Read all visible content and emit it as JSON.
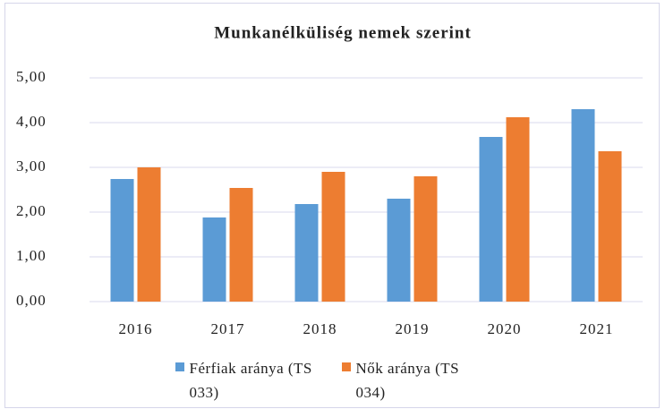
{
  "chart_data": {
    "type": "bar",
    "title": "Munkanélküliség nemek szerint",
    "categories": [
      "2016",
      "2017",
      "2018",
      "2019",
      "2020",
      "2021"
    ],
    "series": [
      {
        "name": "Férfiak aránya (TS 033)",
        "color": "#5b9bd5",
        "values": [
          2.74,
          1.88,
          2.18,
          2.3,
          3.68,
          4.3
        ]
      },
      {
        "name": "Nők aránya (TS 034)",
        "color": "#ed7d31",
        "values": [
          3.0,
          2.54,
          2.9,
          2.8,
          4.12,
          3.36
        ]
      }
    ],
    "ylim": [
      0,
      5
    ],
    "yticks": [
      {
        "value": 0,
        "label": "0,00"
      },
      {
        "value": 1,
        "label": "1,00"
      },
      {
        "value": 2,
        "label": "2,00"
      },
      {
        "value": 3,
        "label": "3,00"
      },
      {
        "value": 4,
        "label": "4,00"
      },
      {
        "value": 5,
        "label": "5,00"
      }
    ],
    "grid": true,
    "legend": "bottom"
  }
}
